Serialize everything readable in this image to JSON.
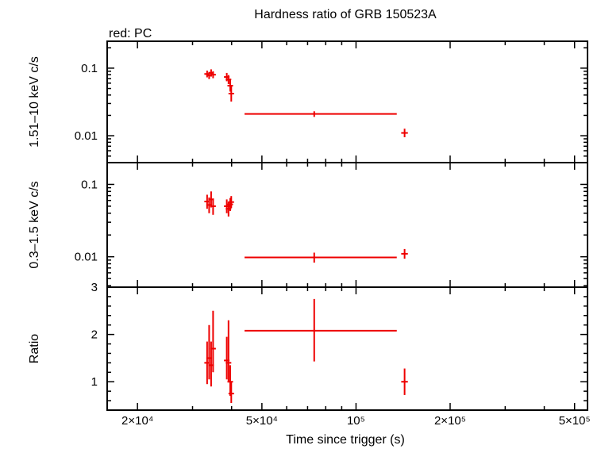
{
  "chart_data": {
    "type": "scatter",
    "title": "Hardness ratio of GRB 150523A",
    "subtitle": "red: PC",
    "xlabel": "Time since trigger (s)",
    "x_scale": "log",
    "xlim": [
      16000,
      550000
    ],
    "x_ticks": [
      {
        "value": 20000,
        "label": "2×10⁴"
      },
      {
        "value": 50000,
        "label": "5×10⁴"
      },
      {
        "value": 100000,
        "label": "10⁵"
      },
      {
        "value": 200000,
        "label": "2×10⁵"
      },
      {
        "value": 500000,
        "label": "5×10⁵"
      }
    ],
    "series_color": "#ee0000",
    "panels": [
      {
        "id": "hard",
        "ylabel": "1.51–10 keV c/s",
        "y_scale": "log",
        "ylim": [
          0.004,
          0.25
        ],
        "y_ticks": [
          {
            "value": 0.01,
            "label": "0.01"
          },
          {
            "value": 0.1,
            "label": "0.1"
          }
        ],
        "points": [
          {
            "x": 33400,
            "y": 0.082,
            "xerr": [
              300,
              300
            ],
            "yerr": [
              0.009,
              0.01
            ]
          },
          {
            "x": 33900,
            "y": 0.078,
            "xerr": [
              300,
              300
            ],
            "yerr": [
              0.009,
              0.01
            ]
          },
          {
            "x": 34400,
            "y": 0.085,
            "xerr": [
              300,
              300
            ],
            "yerr": [
              0.01,
              0.011
            ]
          },
          {
            "x": 34900,
            "y": 0.08,
            "xerr": [
              300,
              300
            ],
            "yerr": [
              0.009,
              0.01
            ]
          },
          {
            "x": 38600,
            "y": 0.074,
            "xerr": [
              300,
              300
            ],
            "yerr": [
              0.01,
              0.011
            ]
          },
          {
            "x": 39100,
            "y": 0.068,
            "xerr": [
              300,
              300
            ],
            "yerr": [
              0.01,
              0.011
            ]
          },
          {
            "x": 39600,
            "y": 0.055,
            "xerr": [
              300,
              300
            ],
            "yerr": [
              0.01,
              0.012
            ]
          },
          {
            "x": 39900,
            "y": 0.042,
            "xerr": [
              300,
              300
            ],
            "yerr": [
              0.01,
              0.012
            ]
          },
          {
            "x": 73500,
            "y": 0.021,
            "xerr": [
              29500,
              61500
            ],
            "yerr": [
              0.002,
              0.002
            ]
          },
          {
            "x": 143000,
            "y": 0.011,
            "xerr": [
              3500,
              3500
            ],
            "yerr": [
              0.0015,
              0.0017
            ]
          }
        ]
      },
      {
        "id": "soft",
        "ylabel": "0.3–1.5 keV c/s",
        "y_scale": "log",
        "ylim": [
          0.0038,
          0.2
        ],
        "y_ticks": [
          {
            "value": 0.01,
            "label": "0.01"
          },
          {
            "value": 0.1,
            "label": "0.1"
          }
        ],
        "points": [
          {
            "x": 33400,
            "y": 0.058,
            "xerr": [
              300,
              300
            ],
            "yerr": [
              0.012,
              0.014
            ]
          },
          {
            "x": 33900,
            "y": 0.052,
            "xerr": [
              300,
              300
            ],
            "yerr": [
              0.012,
              0.014
            ]
          },
          {
            "x": 34400,
            "y": 0.062,
            "xerr": [
              300,
              300
            ],
            "yerr": [
              0.014,
              0.018
            ]
          },
          {
            "x": 34900,
            "y": 0.05,
            "xerr": [
              300,
              300
            ],
            "yerr": [
              0.012,
              0.014
            ]
          },
          {
            "x": 38600,
            "y": 0.05,
            "xerr": [
              300,
              300
            ],
            "yerr": [
              0.01,
              0.012
            ]
          },
          {
            "x": 39100,
            "y": 0.046,
            "xerr": [
              300,
              300
            ],
            "yerr": [
              0.01,
              0.012
            ]
          },
          {
            "x": 39600,
            "y": 0.053,
            "xerr": [
              300,
              300
            ],
            "yerr": [
              0.01,
              0.012
            ]
          },
          {
            "x": 39900,
            "y": 0.057,
            "xerr": [
              300,
              300
            ],
            "yerr": [
              0.01,
              0.012
            ]
          },
          {
            "x": 73500,
            "y": 0.0098,
            "xerr": [
              29500,
              61500
            ],
            "yerr": [
              0.0015,
              0.0016
            ]
          },
          {
            "x": 143000,
            "y": 0.011,
            "xerr": [
              3500,
              3500
            ],
            "yerr": [
              0.0016,
              0.0018
            ]
          }
        ]
      },
      {
        "id": "ratio",
        "ylabel": "Ratio",
        "y_scale": "linear",
        "ylim": [
          0.4,
          3.0
        ],
        "y_ticks": [
          {
            "value": 1,
            "label": "1"
          },
          {
            "value": 2,
            "label": "2"
          },
          {
            "value": 3,
            "label": "3"
          }
        ],
        "points": [
          {
            "x": 33400,
            "y": 1.4,
            "xerr": [
              300,
              300
            ],
            "yerr": [
              0.45,
              0.45
            ]
          },
          {
            "x": 33900,
            "y": 1.5,
            "xerr": [
              300,
              300
            ],
            "yerr": [
              0.45,
              0.7
            ]
          },
          {
            "x": 34400,
            "y": 1.35,
            "xerr": [
              300,
              300
            ],
            "yerr": [
              0.45,
              0.5
            ]
          },
          {
            "x": 34900,
            "y": 1.7,
            "xerr": [
              300,
              300
            ],
            "yerr": [
              0.5,
              0.8
            ]
          },
          {
            "x": 38600,
            "y": 1.45,
            "xerr": [
              300,
              300
            ],
            "yerr": [
              0.4,
              0.5
            ]
          },
          {
            "x": 39100,
            "y": 1.4,
            "xerr": [
              300,
              300
            ],
            "yerr": [
              0.4,
              0.9
            ]
          },
          {
            "x": 39600,
            "y": 1.0,
            "xerr": [
              300,
              300
            ],
            "yerr": [
              0.3,
              0.35
            ]
          },
          {
            "x": 39900,
            "y": 0.75,
            "xerr": [
              300,
              300
            ],
            "yerr": [
              0.2,
              0.25
            ]
          },
          {
            "x": 73500,
            "y": 2.08,
            "xerr": [
              29500,
              61500
            ],
            "yerr": [
              0.65,
              0.67
            ]
          },
          {
            "x": 143000,
            "y": 1.0,
            "xerr": [
              3500,
              3500
            ],
            "yerr": [
              0.28,
              0.28
            ]
          }
        ]
      }
    ]
  }
}
